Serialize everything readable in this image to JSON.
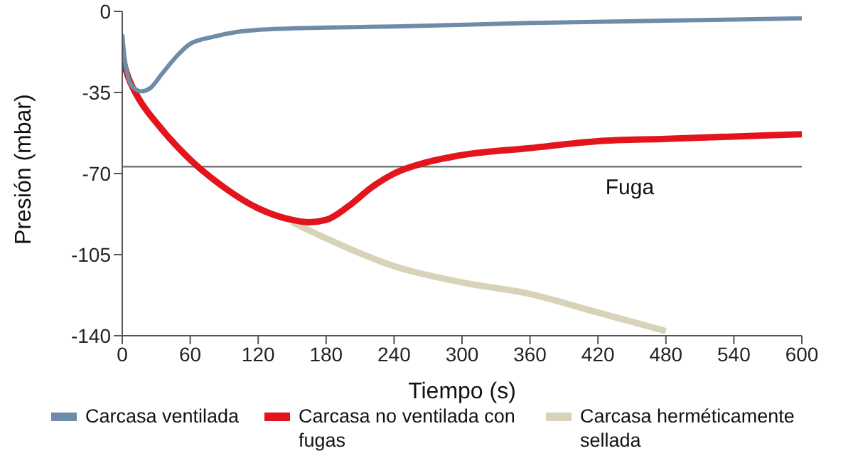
{
  "chart_data": {
    "type": "line",
    "xlabel": "Tiempo (s)",
    "ylabel": "Presión (mbar)",
    "xlim": [
      0,
      600
    ],
    "xticks": [
      0,
      60,
      120,
      180,
      240,
      300,
      360,
      420,
      480,
      540,
      600
    ],
    "ylim": [
      -140,
      0
    ],
    "yticks": [
      -140,
      -105,
      -70,
      -35,
      0
    ],
    "grid": false,
    "legend": "bottom",
    "marker": "none",
    "line_style": "solid",
    "ref_lines": [
      {
        "axis": "y",
        "value": -67,
        "label": "Fuga",
        "color": "#777777"
      }
    ],
    "series": [
      {
        "name": "Carcasa herméticamente sellada",
        "color": "#d6d3b8",
        "x": [
          150,
          180,
          240,
          300,
          360,
          420,
          480
        ],
        "values": [
          -91,
          -98,
          -110,
          -117,
          -122,
          -130,
          -138
        ]
      },
      {
        "name": "Carcasa no ventilada con fugas",
        "color": "#e3141b",
        "x": [
          0,
          5,
          15,
          30,
          60,
          90,
          120,
          150,
          165,
          180,
          200,
          220,
          240,
          270,
          300,
          360,
          420,
          480,
          540,
          600
        ],
        "values": [
          -20,
          -28,
          -38,
          -48,
          -64,
          -76,
          -85,
          -90,
          -91,
          -90,
          -84,
          -76,
          -70,
          -65,
          -62,
          -59,
          -56,
          -55,
          -54,
          -53
        ]
      },
      {
        "name": "Carcasa ventilada",
        "color": "#6e8ca8",
        "x": [
          0,
          2,
          5,
          10,
          17,
          25,
          35,
          45,
          60,
          80,
          100,
          120,
          180,
          240,
          360,
          480,
          600
        ],
        "values": [
          -10,
          -20,
          -28,
          -33,
          -34.5,
          -33,
          -27,
          -21,
          -14,
          -11,
          -9,
          -8,
          -7,
          -6.5,
          -5,
          -4,
          -3
        ]
      }
    ]
  }
}
